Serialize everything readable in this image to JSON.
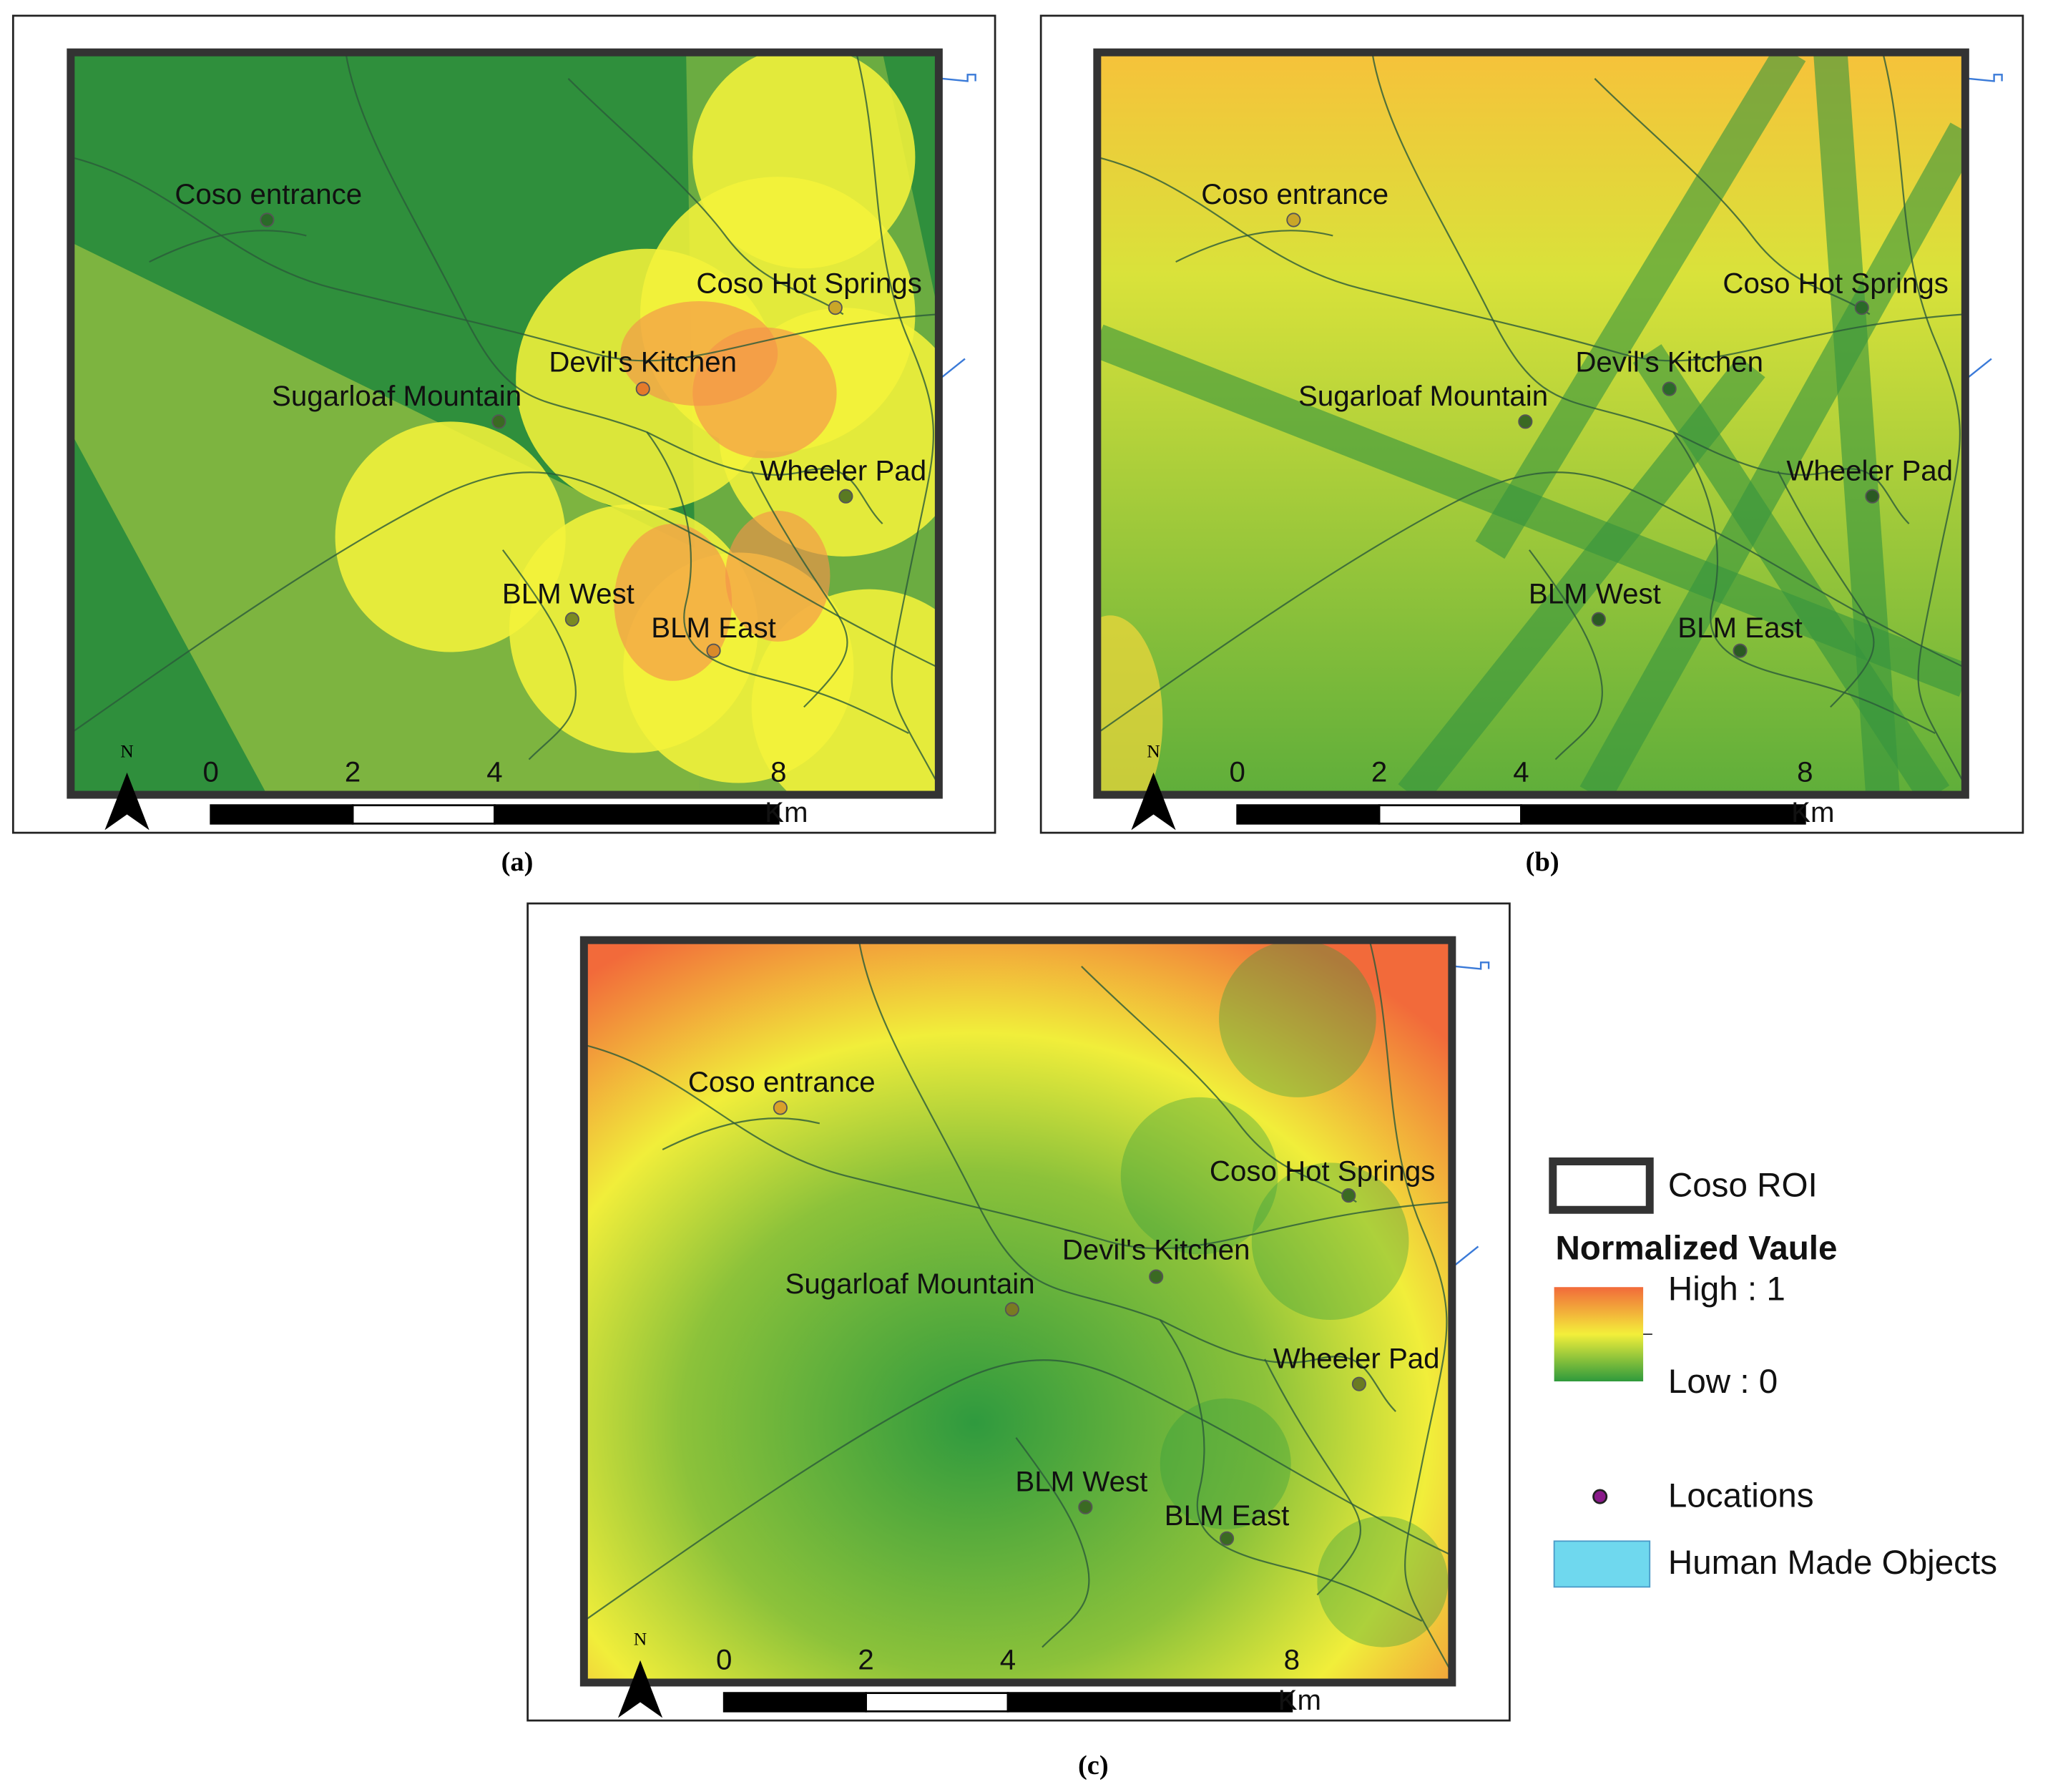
{
  "panels": [
    {
      "caption": "(a)",
      "north": "N",
      "scale_ticks": [
        0,
        2,
        4,
        8
      ],
      "scale_unit": "Km",
      "locations": [
        "Coso entrance",
        "Coso Hot Springs",
        "Devil's Kitchen",
        "Sugarloaf Mountain",
        "Wheeler Pad",
        "BLM West",
        "BLM East"
      ]
    },
    {
      "caption": "(b)",
      "north": "N",
      "scale_ticks": [
        0,
        2,
        4,
        8
      ],
      "scale_unit": "Km",
      "locations": [
        "Coso entrance",
        "Coso Hot Springs",
        "Devil's Kitchen",
        "Sugarloaf Mountain",
        "Wheeler Pad",
        "BLM West",
        "BLM East"
      ]
    },
    {
      "caption": "(c)",
      "north": "N",
      "scale_ticks": [
        0,
        2,
        4,
        8
      ],
      "scale_unit": "Km",
      "locations": [
        "Coso entrance",
        "Coso Hot Springs",
        "Devil's Kitchen",
        "Sugarloaf Mountain",
        "Wheeler Pad",
        "BLM West",
        "BLM East"
      ]
    }
  ],
  "legend": {
    "roi": "Coso ROI",
    "title": "Normalized Vaule",
    "high": "High : 1",
    "low": "Low : 0",
    "locations": "Locations",
    "human_made": "Human Made Objects"
  }
}
